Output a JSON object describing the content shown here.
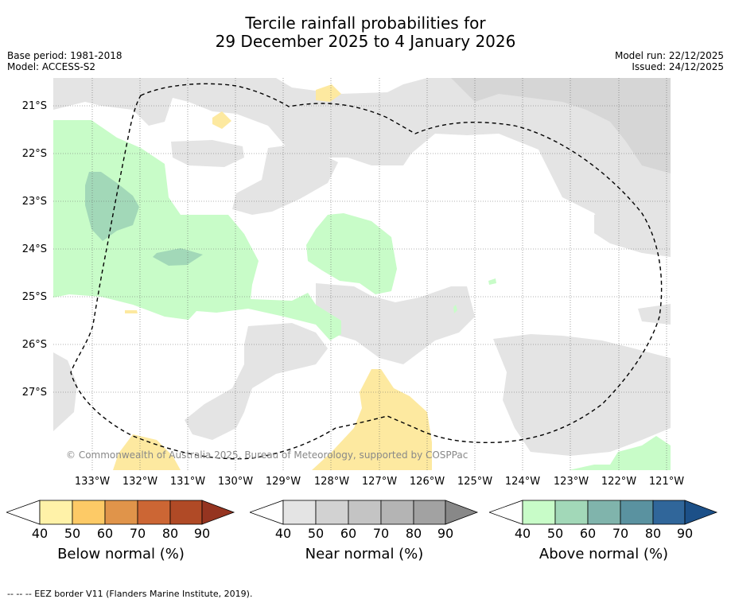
{
  "title": {
    "line1": "Tercile rainfall probabilities for",
    "line2": "29 December 2025 to 4 January 2026"
  },
  "meta": {
    "base_period": "Base period: 1981-2018",
    "model": "Model: ACCESS-S2",
    "model_run": "Model run: 22/12/2025",
    "issued": "Issued: 24/12/2025"
  },
  "map": {
    "lat_labels": [
      "21°S",
      "22°S",
      "23°S",
      "24°S",
      "25°S",
      "26°S",
      "27°S"
    ],
    "lon_labels": [
      "133°W",
      "132°W",
      "131°W",
      "130°W",
      "129°W",
      "128°W",
      "127°W",
      "126°W",
      "125°W",
      "124°W",
      "123°W",
      "122°W",
      "121°W"
    ],
    "copyright": "© Commonwealth of Australia 2025, Bureau of Meteorology, supported by COSPPac",
    "colors": {
      "near40": "#e4e4e4",
      "near50": "#d6d6d6",
      "above40": "#c8fcc8",
      "above50": "#a2d8b8",
      "below40": "#fde9a0",
      "eez": "#000000"
    }
  },
  "colorbars": [
    {
      "label": "Below normal (%)",
      "ticks": [
        "40",
        "50",
        "60",
        "70",
        "80",
        "90"
      ],
      "colors": [
        "#fff2a8",
        "#fdca66",
        "#e0944a",
        "#cc6634",
        "#b04a26",
        "#953420"
      ]
    },
    {
      "label": "Near normal (%)",
      "ticks": [
        "40",
        "50",
        "60",
        "70",
        "80",
        "90"
      ],
      "colors": [
        "#e4e4e4",
        "#d2d2d2",
        "#c4c4c4",
        "#b4b4b4",
        "#a2a2a2",
        "#888888"
      ]
    },
    {
      "label": "Above normal (%)",
      "ticks": [
        "40",
        "50",
        "60",
        "70",
        "80",
        "90"
      ],
      "colors": [
        "#c8fcc8",
        "#a2d8b8",
        "#80b4ac",
        "#5a92a0",
        "#30669a",
        "#1c5088"
      ]
    }
  ],
  "footnote": "--  --  -- EEZ border V11 (Flanders Marine Institute, 2019)."
}
